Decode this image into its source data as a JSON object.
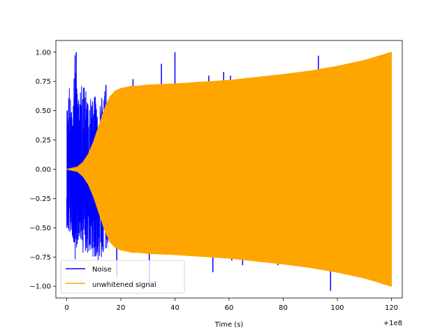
{
  "chart_data": {
    "type": "line",
    "title": "",
    "xlabel": "Time (s)",
    "ylabel": "",
    "x_offset_label": "+1e8",
    "xlim": [
      -4,
      124
    ],
    "ylim": [
      -1.1,
      1.1
    ],
    "xticks": [
      0,
      20,
      40,
      60,
      80,
      100,
      120
    ],
    "xtick_labels": [
      "0",
      "20",
      "40",
      "60",
      "80",
      "100",
      "120"
    ],
    "yticks": [
      -1.0,
      -0.75,
      -0.5,
      -0.25,
      0.0,
      0.25,
      0.5,
      0.75,
      1.0
    ],
    "ytick_labels": [
      "−1.00",
      "−0.75",
      "−0.50",
      "−0.25",
      "0.00",
      "0.25",
      "0.50",
      "0.75",
      "1.00"
    ],
    "grid": false,
    "legend_position": "lower-left",
    "series": [
      {
        "name": "Noise",
        "color": "#0000ff",
        "style": "dense noise, large early spikes then sparse outliers",
        "envelope_x": [
          0,
          1,
          2,
          3,
          4,
          5,
          6,
          8,
          10,
          12,
          14,
          16,
          18,
          20,
          30,
          40,
          60,
          80,
          100,
          120
        ],
        "envelope_upper": [
          0.52,
          0.72,
          0.45,
          1.0,
          0.62,
          0.65,
          0.78,
          0.6,
          0.62,
          0.57,
          0.72,
          0.52,
          0.45,
          0.38,
          0.32,
          0.28,
          0.28,
          0.28,
          0.28,
          0.28
        ],
        "envelope_lower": [
          -0.5,
          -0.6,
          -0.55,
          -0.8,
          -0.63,
          -0.6,
          -0.72,
          -0.73,
          -0.75,
          -0.8,
          -0.75,
          -0.6,
          -0.5,
          -0.42,
          -0.35,
          -0.3,
          -0.3,
          -0.3,
          -0.3,
          -0.3
        ],
        "spikes": [
          {
            "x": 3.5,
            "y": 1.0
          },
          {
            "x": 10.5,
            "y": 0.62
          },
          {
            "x": 14.5,
            "y": 0.72
          },
          {
            "x": 18.5,
            "y": -0.92
          },
          {
            "x": 24.5,
            "y": 0.77
          },
          {
            "x": 30.5,
            "y": -0.98
          },
          {
            "x": 35,
            "y": 0.9
          },
          {
            "x": 40,
            "y": 1.0
          },
          {
            "x": 52.5,
            "y": 0.8
          },
          {
            "x": 55,
            "y": 0.75
          },
          {
            "x": 58,
            "y": 0.83
          },
          {
            "x": 60.5,
            "y": 0.8
          },
          {
            "x": 54,
            "y": -0.88
          },
          {
            "x": 61,
            "y": -0.78
          },
          {
            "x": 65,
            "y": -0.82
          },
          {
            "x": 78,
            "y": -0.82
          },
          {
            "x": 85,
            "y": 0.73
          },
          {
            "x": 93,
            "y": 0.97
          },
          {
            "x": 97.5,
            "y": -1.04
          },
          {
            "x": 94,
            "y": 0.85
          }
        ]
      },
      {
        "name": "unwhitened signal",
        "color": "#ffa500",
        "style": "chirp oscillation, amplitude envelope shown",
        "envelope_x": [
          0,
          2,
          4,
          6,
          8,
          10,
          12,
          14,
          16,
          18,
          20,
          22,
          24,
          26,
          30,
          40,
          60,
          80,
          90,
          100,
          110,
          120
        ],
        "envelope_amp": [
          0.0,
          0.01,
          0.02,
          0.06,
          0.13,
          0.24,
          0.38,
          0.52,
          0.62,
          0.67,
          0.69,
          0.7,
          0.71,
          0.71,
          0.72,
          0.73,
          0.76,
          0.81,
          0.84,
          0.88,
          0.93,
          1.0
        ]
      }
    ]
  }
}
